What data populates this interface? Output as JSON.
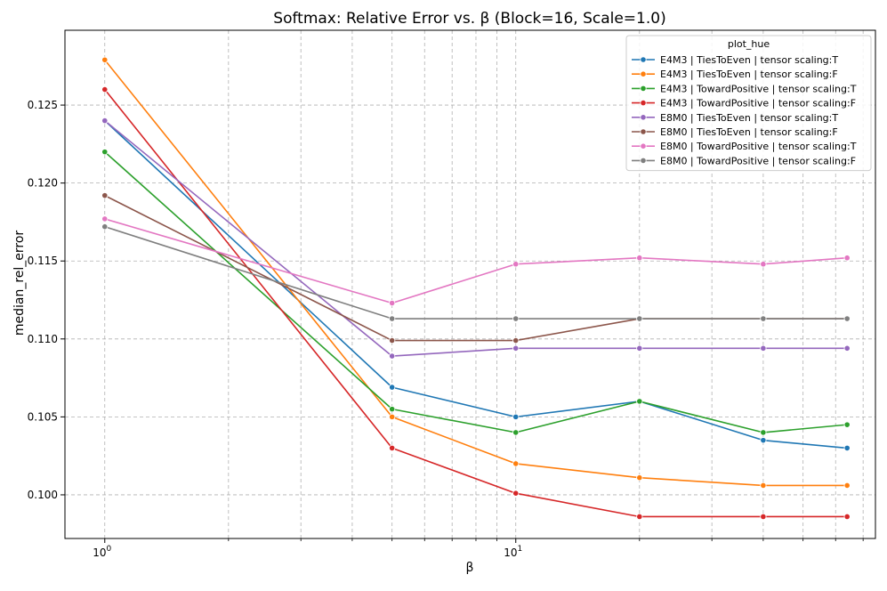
{
  "chart_data": {
    "type": "line",
    "title": "Softmax: Relative Error vs. β (Block=16, Scale=1.0)",
    "xlabel": "β",
    "ylabel": "median_rel_error",
    "xscale": "log",
    "xlim": [
      0.8,
      75
    ],
    "ylim": [
      0.0972,
      0.1298
    ],
    "grid": true,
    "grid_style": "dashed",
    "x_major_ticks": [
      {
        "value": 1,
        "label_base": "10",
        "label_exp": "0"
      },
      {
        "value": 10,
        "label_base": "10",
        "label_exp": "1"
      }
    ],
    "x_minor_ticks": [
      2,
      3,
      4,
      5,
      6,
      7,
      8,
      9,
      20,
      30,
      40,
      50,
      60,
      70
    ],
    "y_ticks": [
      {
        "value": 0.1,
        "label": "0.100"
      },
      {
        "value": 0.105,
        "label": "0.105"
      },
      {
        "value": 0.11,
        "label": "0.110"
      },
      {
        "value": 0.115,
        "label": "0.115"
      },
      {
        "value": 0.12,
        "label": "0.120"
      },
      {
        "value": 0.125,
        "label": "0.125"
      }
    ],
    "x": [
      1,
      5,
      10,
      20,
      40,
      64
    ],
    "legend_title": "plot_hue",
    "legend_position": "upper-right",
    "series": [
      {
        "name": "E4M3 | TiesToEven | tensor scaling:T",
        "color": "#1f77b4",
        "values": [
          0.124,
          0.1069,
          0.105,
          0.106,
          0.1035,
          0.103
        ]
      },
      {
        "name": "E4M3 | TiesToEven | tensor scaling:F",
        "color": "#ff7f0e",
        "values": [
          0.1279,
          0.105,
          0.102,
          0.1011,
          0.1006,
          0.1006
        ]
      },
      {
        "name": "E4M3 | TowardPositive | tensor scaling:T",
        "color": "#2ca02c",
        "values": [
          0.122,
          0.1055,
          0.104,
          0.106,
          0.104,
          0.1045
        ]
      },
      {
        "name": "E4M3 | TowardPositive | tensor scaling:F",
        "color": "#d62728",
        "values": [
          0.126,
          0.103,
          0.1001,
          0.0986,
          0.0986,
          0.0986
        ]
      },
      {
        "name": "E8M0 | TiesToEven | tensor scaling:T",
        "color": "#9467bd",
        "values": [
          0.124,
          0.1089,
          0.1094,
          0.1094,
          0.1094,
          0.1094
        ]
      },
      {
        "name": "E8M0 | TiesToEven | tensor scaling:F",
        "color": "#8c564b",
        "values": [
          0.1192,
          0.1099,
          0.1099,
          0.1113,
          0.1113,
          0.1113
        ]
      },
      {
        "name": "E8M0 | TowardPositive | tensor scaling:T",
        "color": "#e377c2",
        "values": [
          0.1177,
          0.1123,
          0.1148,
          0.1152,
          0.1148,
          0.1152
        ]
      },
      {
        "name": "E8M0 | TowardPositive | tensor scaling:F",
        "color": "#7f7f7f",
        "values": [
          0.1172,
          0.1113,
          0.1113,
          0.1113,
          0.1113,
          0.1113
        ]
      }
    ]
  }
}
